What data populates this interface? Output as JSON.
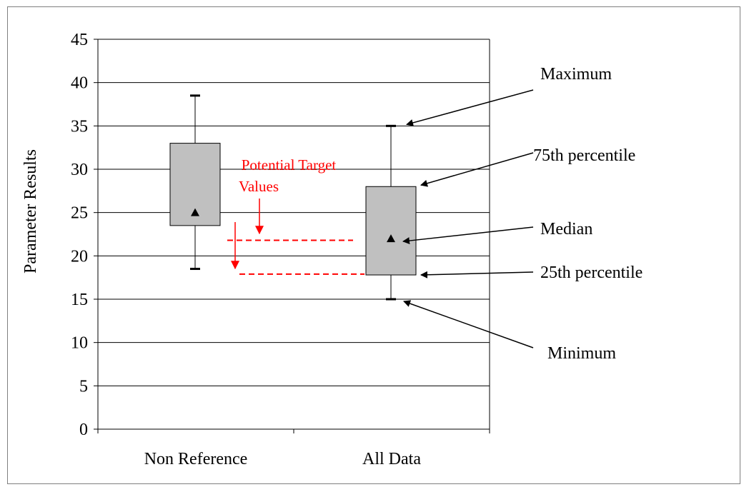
{
  "chart_data": {
    "type": "box",
    "categories": [
      "Non Reference",
      "All Data"
    ],
    "ylabel": "Parameter Results",
    "xlabel": "",
    "ylim": [
      0,
      45
    ],
    "yticks": [
      0,
      5,
      10,
      15,
      20,
      25,
      30,
      35,
      40,
      45
    ],
    "grid": true,
    "boxes": [
      {
        "category": "Non Reference",
        "min": 18.5,
        "q1": 23.5,
        "median": 25,
        "q3": 33,
        "max": 38.5
      },
      {
        "category": "All Data",
        "min": 15,
        "q1": 17.8,
        "median": 22,
        "q3": 28,
        "max": 35
      }
    ],
    "target_lines": [
      21.8,
      17.9
    ],
    "target_label_line1": "Potential Target",
    "target_label_line2": "Values",
    "annotations": [
      {
        "label": "Maximum",
        "points_to": "max"
      },
      {
        "label": "75th percentile",
        "points_to": "q3"
      },
      {
        "label": "Median",
        "points_to": "median"
      },
      {
        "label": "25th percentile",
        "points_to": "q1"
      },
      {
        "label": "Minimum",
        "points_to": "min"
      }
    ],
    "colors": {
      "box_fill": "#c0c0c0",
      "axis": "#000000",
      "grid": "#000000",
      "target": "#ff0000",
      "arrow": "#000000"
    }
  }
}
